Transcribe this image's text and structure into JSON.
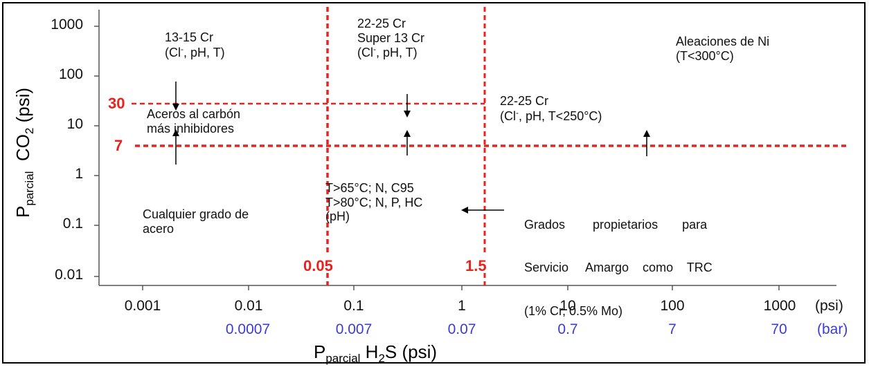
{
  "chart_data": {
    "type": "scatter",
    "x_scale": "log",
    "y_scale": "log",
    "xlim": [
      0.0003,
      4000
    ],
    "ylim": [
      0.01,
      1000
    ],
    "xlabel": {
      "main": "P",
      "sub": "parcial",
      "rest": " H",
      "sub2": "2",
      "rest2": "S (psi)"
    },
    "ylabel": {
      "main": "P",
      "sub": "parcial",
      "rest": "  CO",
      "sub2": "2",
      "rest2": " (psi)"
    },
    "x_ticks_psi": [
      "0.001",
      "0.01",
      "0.1",
      "1",
      "10",
      "100",
      "1000"
    ],
    "x_ticks_bar": [
      "0.0007",
      "0.007",
      "0.07",
      "0.7",
      "7",
      "70"
    ],
    "x_unit_psi": "(psi)",
    "x_unit_bar": "(bar)",
    "y_ticks": [
      "1000",
      "100",
      "10",
      "1",
      "0.1",
      "0.01"
    ],
    "thresholds": {
      "h2s": [
        {
          "value": 0.05,
          "label": "0.05"
        },
        {
          "value": 1.5,
          "label": "1.5"
        }
      ],
      "co2": [
        {
          "value": 30,
          "label": "30"
        },
        {
          "value": 7,
          "label": "7"
        }
      ]
    },
    "regions": {
      "r1": {
        "line1": "13-15 Cr",
        "line2_pre": "(Cl",
        "line2_sup": "-",
        "line2_post": ", pH, T)"
      },
      "r2": {
        "line1": "22-25 Cr",
        "line2": "Super 13 Cr",
        "line3_pre": "(Cl",
        "line3_sup": "-",
        "line3_post": ", pH, T)"
      },
      "r3": {
        "line1": "Aleaciones de Ni",
        "line2": "(T<300°C)"
      },
      "r4": {
        "line1": "22-25 Cr",
        "line2_pre": "(Cl",
        "line2_sup": "-",
        "line2_post": ", pH, T<250°C)"
      },
      "r5": {
        "line1": "Aceros al carbón",
        "line2": "más inhibidores"
      },
      "r6": {
        "line1": "T>65°C; N, C95",
        "line2": "T>80°C; N, P, HC",
        "line3": "(pH)"
      },
      "r7": {
        "line1": "Grados        propietarios       para",
        "line2": "Servicio     Amargo    como    TRC",
        "line3": "(1% Cr, 0.5% Mo)"
      },
      "r8": {
        "line1": "Cualquier grado de",
        "line2": "acero"
      }
    },
    "grid": false
  },
  "colors": {
    "threshold": "#e8231f",
    "bar_ticks": "#3b3bd6",
    "text": "#111111"
  }
}
